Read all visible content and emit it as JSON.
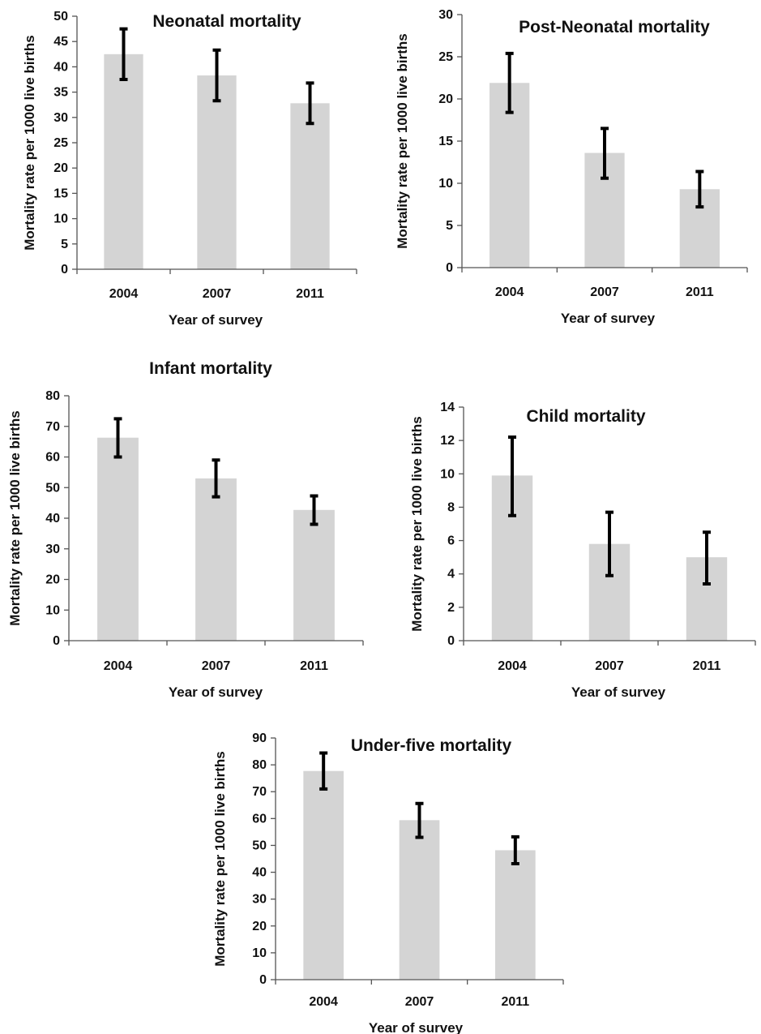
{
  "colors": {
    "bar": "#d4d4d4",
    "error_bar": "#000000",
    "axis": "#555555"
  },
  "chart_data": [
    {
      "type": "bar",
      "title": "Neonatal mortality",
      "xlabel": "Year of survey",
      "ylabel": "Mortality rate per 1000 live births",
      "categories": [
        "2004",
        "2007",
        "2011"
      ],
      "values": [
        42.5,
        38.3,
        32.8
      ],
      "error_low": [
        37.5,
        33.3,
        28.8
      ],
      "error_high": [
        47.5,
        43.3,
        36.8
      ],
      "ylim": [
        0,
        50
      ],
      "yticks": [
        0,
        5,
        10,
        15,
        20,
        25,
        30,
        35,
        40,
        45,
        50
      ],
      "grid": false
    },
    {
      "type": "bar",
      "title": "Post-Neonatal mortality",
      "xlabel": "Year of survey",
      "ylabel": "Mortality rate per 1000 live births",
      "categories": [
        "2004",
        "2007",
        "2011"
      ],
      "values": [
        21.9,
        13.6,
        9.3
      ],
      "error_low": [
        18.4,
        10.6,
        7.2
      ],
      "error_high": [
        25.4,
        16.5,
        11.4
      ],
      "ylim": [
        0,
        30
      ],
      "yticks": [
        0,
        5,
        10,
        15,
        20,
        25,
        30
      ],
      "grid": false
    },
    {
      "type": "bar",
      "title": "Infant mortality",
      "xlabel": "Year of survey",
      "ylabel": "Mortality rate per 1000 live births",
      "categories": [
        "2004",
        "2007",
        "2011"
      ],
      "values": [
        66.3,
        53.0,
        42.7
      ],
      "error_low": [
        60.0,
        47.0,
        38.0
      ],
      "error_high": [
        72.5,
        59.0,
        47.3
      ],
      "ylim": [
        0,
        80
      ],
      "yticks": [
        0,
        10,
        20,
        30,
        40,
        50,
        60,
        70,
        80
      ],
      "grid": false
    },
    {
      "type": "bar",
      "title": "Child mortality",
      "xlabel": "Year of survey",
      "ylabel": "Mortality rate per 1000 live births",
      "categories": [
        "2004",
        "2007",
        "2011"
      ],
      "values": [
        9.9,
        5.8,
        5.0
      ],
      "error_low": [
        7.5,
        3.9,
        3.4
      ],
      "error_high": [
        12.2,
        7.7,
        6.5
      ],
      "ylim": [
        0,
        14
      ],
      "yticks": [
        0,
        2,
        4,
        6,
        8,
        10,
        12,
        14
      ],
      "grid": false
    },
    {
      "type": "bar",
      "title": "Under-five mortality",
      "xlabel": "Year of survey",
      "ylabel": "Mortality rate per 1000 live births",
      "categories": [
        "2004",
        "2007",
        "2011"
      ],
      "values": [
        77.7,
        59.4,
        48.2
      ],
      "error_low": [
        71.0,
        53.0,
        43.2
      ],
      "error_high": [
        84.4,
        65.6,
        53.2
      ],
      "ylim": [
        0,
        90
      ],
      "yticks": [
        0,
        10,
        20,
        30,
        40,
        50,
        60,
        70,
        80,
        90
      ],
      "grid": false
    }
  ]
}
